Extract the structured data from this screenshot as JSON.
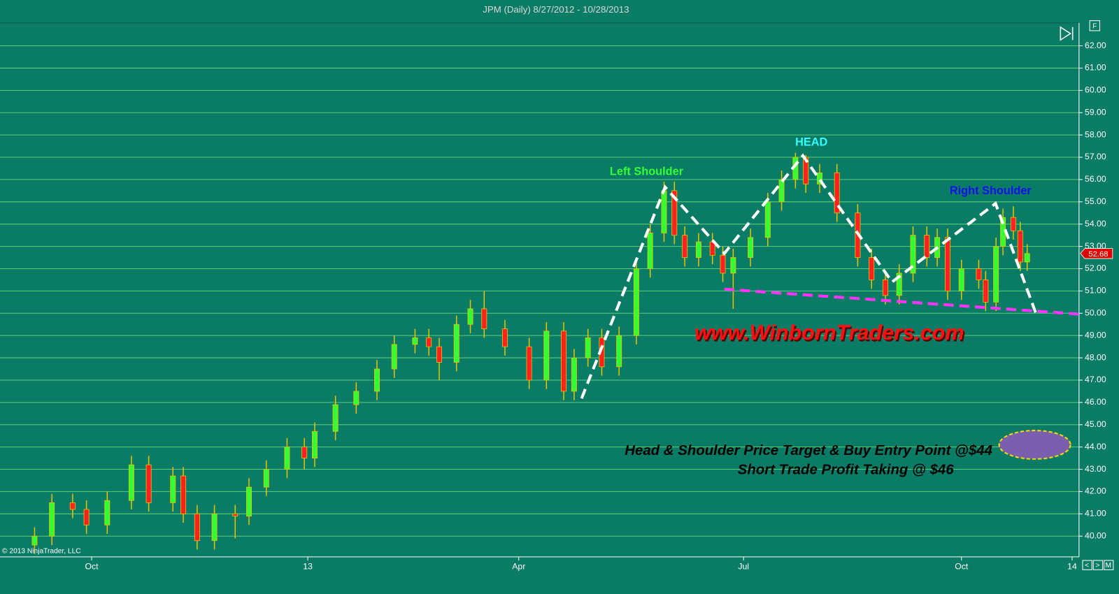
{
  "chart_data": {
    "type": "candlestick",
    "title": "JPM (Daily)  8/27/2012 - 10/28/2013",
    "copyright": "© 2013 NinjaTrader, LLC",
    "x": [
      0,
      5,
      11,
      15,
      21,
      28,
      33,
      40,
      43,
      47,
      52,
      58,
      62,
      67,
      73,
      78,
      81,
      87,
      93,
      99,
      104,
      110,
      114,
      117,
      122,
      126,
      130,
      136,
      143,
      148,
      153,
      156,
      160,
      164,
      169,
      174,
      178,
      182,
      185,
      188,
      192,
      196,
      199,
      202,
      207,
      212,
      216,
      220,
      223,
      227,
      232,
      238,
      242,
      246,
      250,
      254,
      258,
      261,
      264,
      268,
      273,
      275,
      278,
      280,
      283,
      285,
      287
    ],
    "open": [
      39.6,
      40.0,
      41.5,
      41.2,
      40.5,
      41.6,
      43.2,
      41.5,
      42.7,
      41.0,
      39.8,
      41.0,
      40.9,
      42.2,
      43.0,
      44.0,
      43.5,
      44.7,
      45.9,
      46.5,
      47.5,
      48.6,
      48.9,
      48.5,
      47.8,
      49.5,
      50.2,
      49.3,
      48.5,
      47.0,
      49.2,
      46.5,
      48.0,
      48.9,
      47.6,
      49.0,
      52.0,
      53.6,
      55.5,
      53.5,
      52.5,
      53.2,
      52.6,
      51.8,
      52.5,
      53.4,
      55.0,
      56.0,
      57.0,
      55.8,
      56.3,
      54.5,
      52.5,
      51.5,
      50.8,
      51.8,
      53.5,
      52.5,
      53.4,
      51.0,
      52.0,
      51.5,
      50.5,
      53.0,
      54.3,
      53.7,
      52.3
    ],
    "high": [
      40.4,
      41.9,
      41.9,
      41.6,
      42.0,
      43.6,
      43.6,
      43.1,
      43.1,
      41.4,
      41.4,
      41.4,
      42.6,
      43.4,
      44.4,
      44.4,
      45.1,
      46.3,
      46.9,
      47.9,
      49.0,
      49.3,
      49.3,
      48.9,
      49.9,
      50.6,
      51.0,
      49.7,
      48.9,
      49.6,
      49.6,
      48.4,
      49.3,
      49.3,
      49.4,
      52.4,
      54.0,
      55.9,
      55.9,
      53.9,
      53.6,
      53.6,
      53.0,
      52.9,
      53.8,
      55.4,
      56.4,
      57.2,
      57.1,
      56.7,
      56.7,
      54.9,
      52.9,
      51.9,
      52.2,
      53.9,
      53.9,
      53.8,
      53.8,
      52.4,
      52.4,
      51.9,
      53.4,
      54.7,
      54.8,
      54.1,
      53.1
    ],
    "low": [
      39.2,
      39.6,
      40.8,
      40.1,
      40.1,
      41.2,
      41.1,
      41.1,
      40.6,
      39.4,
      39.4,
      39.9,
      40.5,
      41.8,
      42.6,
      43.0,
      43.1,
      44.3,
      45.5,
      46.1,
      47.1,
      48.2,
      48.1,
      47.0,
      47.4,
      49.1,
      48.9,
      48.1,
      46.6,
      46.6,
      46.1,
      46.1,
      47.6,
      47.2,
      47.2,
      48.6,
      51.6,
      53.2,
      53.1,
      52.1,
      52.1,
      52.2,
      51.4,
      50.2,
      52.1,
      53.0,
      54.6,
      55.6,
      55.4,
      55.4,
      54.1,
      52.1,
      51.1,
      50.4,
      50.4,
      51.4,
      52.1,
      52.1,
      50.6,
      50.6,
      51.1,
      50.1,
      50.1,
      52.6,
      53.3,
      51.9,
      51.9
    ],
    "close": [
      40.0,
      41.5,
      41.2,
      40.5,
      41.6,
      43.2,
      41.5,
      42.7,
      41.0,
      39.8,
      41.0,
      40.9,
      42.2,
      43.0,
      44.0,
      43.5,
      44.7,
      45.9,
      46.5,
      47.5,
      48.6,
      48.9,
      48.5,
      47.8,
      49.5,
      50.2,
      49.3,
      48.5,
      47.0,
      49.2,
      46.5,
      48.0,
      48.9,
      47.6,
      49.0,
      52.0,
      53.6,
      55.5,
      53.5,
      52.5,
      53.2,
      52.6,
      51.8,
      52.5,
      53.4,
      55.0,
      56.0,
      57.0,
      55.8,
      56.3,
      54.5,
      52.5,
      51.5,
      50.8,
      51.8,
      53.5,
      52.5,
      53.4,
      51.0,
      52.0,
      51.5,
      50.5,
      53.0,
      54.3,
      53.7,
      52.3,
      52.68
    ],
    "up_color": "#33ff33",
    "down_color": "#ff2020",
    "wick_color": "#e6c200",
    "last_price": {
      "value": 52.68,
      "label": "52.68"
    },
    "xlim": [
      -10,
      302
    ],
    "xticks": [
      {
        "value": 16.5,
        "label": "Oct"
      },
      {
        "value": 79,
        "label": "13"
      },
      {
        "value": 140,
        "label": "Apr"
      },
      {
        "value": 205,
        "label": "Jul"
      },
      {
        "value": 268,
        "label": "Oct"
      },
      {
        "value": 300,
        "label": "14"
      }
    ],
    "ylim": [
      39.07,
      63.03
    ],
    "yticks": [
      {
        "value": 40,
        "label": "40.00"
      },
      {
        "value": 41,
        "label": "41.00"
      },
      {
        "value": 42,
        "label": "42.00"
      },
      {
        "value": 43,
        "label": "43.00"
      },
      {
        "value": 44,
        "label": "44.00"
      },
      {
        "value": 45,
        "label": "45.00"
      },
      {
        "value": 46,
        "label": "46.00"
      },
      {
        "value": 47,
        "label": "47.00"
      },
      {
        "value": 48,
        "label": "48.00"
      },
      {
        "value": 49,
        "label": "49.00"
      },
      {
        "value": 50,
        "label": "50.00"
      },
      {
        "value": 51,
        "label": "51.00"
      },
      {
        "value": 52,
        "label": "52.00"
      },
      {
        "value": 53,
        "label": "53.00"
      },
      {
        "value": 54,
        "label": "54.00"
      },
      {
        "value": 55,
        "label": "55.00"
      },
      {
        "value": 56,
        "label": "56.00"
      },
      {
        "value": 57,
        "label": "57.00"
      },
      {
        "value": 58,
        "label": "58.00"
      },
      {
        "value": 59,
        "label": "59.00"
      },
      {
        "value": 60,
        "label": "60.00"
      },
      {
        "value": 61,
        "label": "61.00"
      },
      {
        "value": 62,
        "label": "62.00"
      }
    ],
    "grid": true,
    "annotations": {
      "left_shoulder": "Left Shoulder",
      "head": "HEAD",
      "right_shoulder": "Right Shoulder",
      "website": "www.WinbornTraders.com",
      "target": "Head & Shoulder Price Target & Buy Entry Point @$44",
      "profit": "Short Trade Profit Taking @ $46"
    }
  },
  "controls": {
    "format": "F",
    "prev": "<",
    "next": ">",
    "menu": "M"
  }
}
